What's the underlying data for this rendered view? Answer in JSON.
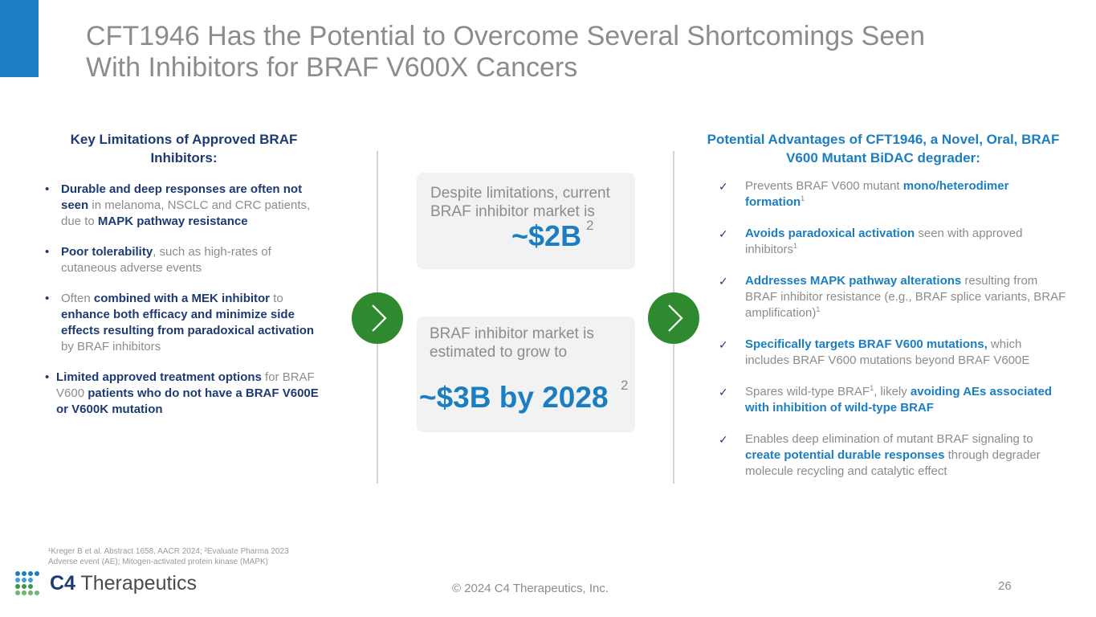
{
  "title": {
    "line1": "CFT1946 Has the Potential to Overcome Several Shortcomings Seen",
    "line2": "With Inhibitors for BRAF V600X Cancers"
  },
  "left": {
    "heading_line1": "Key Limitations of Approved BRAF",
    "heading_line2": "Inhibitors:",
    "bullet": "•",
    "items": [
      {
        "a": "Durable and deep responses are often not seen",
        "b": " in melanoma, NSCLC and CRC patients, due to ",
        "c": "MAPK pathway resistance"
      },
      {
        "a": "Poor tolerability",
        "b": ", such as high-rates of cutaneous adverse events"
      },
      {
        "a": "Often ",
        "b": "combined with a MEK inhibitor",
        "c": " to ",
        "d": "enhance both efficacy and minimize side effects resulting from paradoxical activation",
        "e": " by BRAF inhibitors"
      },
      {
        "a": "Limited approved treatment options",
        "b": " for BRAF V600 ",
        "c": "patients who do not have a BRAF V600E or V600K mutation"
      }
    ]
  },
  "middle": {
    "box1": {
      "text": "Despite limitations, current BRAF inhibitor market is",
      "value": "~$2B",
      "sup": "2"
    },
    "box2": {
      "text": "BRAF inhibitor market is estimated to grow to",
      "value": "~$3B by 2028",
      "sup": "2"
    }
  },
  "right": {
    "heading_a": "Potential Advantages of CFT1946",
    "heading_b": ", a Novel, Oral, BRAF V600 Mutant BiDAC degrader:",
    "check": "✓",
    "items": [
      {
        "a": "Prevents BRAF V600 mutant ",
        "b": "mono/heterodimer formation",
        "sup": "1"
      },
      {
        "a": "Avoids paradoxical activation",
        "b": " seen with approved inhibitors",
        "sup": "1"
      },
      {
        "a": "Addresses MAPK pathway alterations",
        "b": " resulting from BRAF inhibitor resistance (e.g., BRAF splice variants, BRAF amplification)",
        "sup": "1"
      },
      {
        "a": "Specifically targets BRAF V600 mutations,",
        "b": " which includes BRAF V600 mutations beyond BRAF V600E"
      },
      {
        "a": "Spares wild-type BRAF",
        "sup": "1",
        "b": ", likely ",
        "c": "avoiding AEs associated with inhibition of wild-type BRAF"
      },
      {
        "a": "Enables deep elimination of mutant BRAF signaling to ",
        "b": "create potential durable responses",
        "c": " through degrader molecule recycling and catalytic effect"
      }
    ]
  },
  "footnote": {
    "line1": "¹Kreger B et al. Abstract 1658, AACR 2024; ²Evaluate Pharma 2023",
    "line2": "Adverse event (AE); Mitogen-activated protein kinase (MAPK)"
  },
  "logo": {
    "c4": "C4",
    "name": " Therapeutics"
  },
  "copyright": "© 2024 C4 Therapeutics, Inc.",
  "page_number": "26",
  "colors": {
    "accent": "#1b7ec2",
    "navy": "#1e3a73",
    "green": "#2f8a2f",
    "gray_text": "#8c8c8c"
  }
}
